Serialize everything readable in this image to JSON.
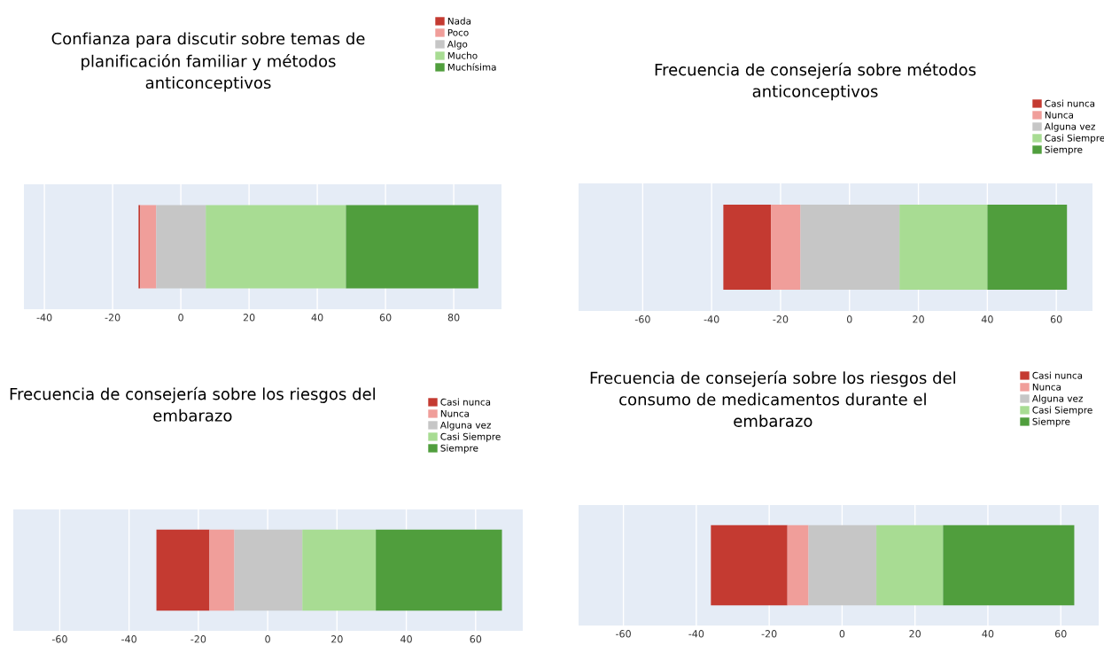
{
  "chart_data": [
    {
      "type": "bar",
      "orientation": "horizontal",
      "title": "Confianza para discutir sobre temas de\nplanificación familiar y métodos\nanticonceptivos",
      "categories": [
        null
      ],
      "xlim": [
        -46,
        94
      ],
      "xticks": [
        -40,
        -20,
        0,
        20,
        40,
        60,
        80
      ],
      "grid": "x",
      "legend": "top right",
      "tick_labels": "x",
      "series": [
        {
          "name": "Nada",
          "color": "#c43a31",
          "base": [
            -12.4
          ],
          "values": [
            0.5
          ]
        },
        {
          "name": "Poco",
          "color": "#f09e9a",
          "base": [
            -11.9
          ],
          "values": [
            4.7
          ]
        },
        {
          "name": "Algo",
          "color": "#c6c6c6",
          "base": [
            -7.2
          ],
          "values": [
            14.5
          ]
        },
        {
          "name": "Mucho",
          "color": "#a8dc93",
          "base": [
            7.3
          ],
          "values": [
            41.1
          ]
        },
        {
          "name": "Muchísima",
          "color": "#509e3d",
          "base": [
            48.4
          ],
          "values": [
            38.8
          ]
        }
      ]
    },
    {
      "type": "bar",
      "orientation": "horizontal",
      "title": "Frecuencia de consejería sobre métodos\nanticonceptivos",
      "categories": [
        null
      ],
      "xlim": [
        -78.6,
        70.5
      ],
      "xticks": [
        -60,
        -40,
        -20,
        0,
        20,
        40,
        60
      ],
      "grid": "x",
      "legend": "top right",
      "tick_labels": "x",
      "series": [
        {
          "name": "Casi nunca",
          "color": "#c43a31",
          "base": [
            -36.6
          ],
          "values": [
            13.8
          ]
        },
        {
          "name": "Nunca",
          "color": "#f09e9a",
          "base": [
            -22.8
          ],
          "values": [
            8.6
          ]
        },
        {
          "name": "Alguna vez",
          "color": "#c6c6c6",
          "base": [
            -14.2
          ],
          "values": [
            28.7
          ]
        },
        {
          "name": "Casi Siempre",
          "color": "#a8dc93",
          "base": [
            14.5
          ],
          "values": [
            25.5
          ]
        },
        {
          "name": "Siempre",
          "color": "#509e3d",
          "base": [
            40.0
          ],
          "values": [
            23.1
          ]
        }
      ]
    },
    {
      "type": "bar",
      "orientation": "horizontal",
      "title": "Frecuencia de consejería sobre los riesgos del\nembarazo",
      "categories": [
        null
      ],
      "xlim": [
        -73.4,
        73.6
      ],
      "xticks": [
        -60,
        -40,
        -20,
        0,
        20,
        40,
        60
      ],
      "grid": "x",
      "legend": "top right",
      "tick_labels": "x",
      "series": [
        {
          "name": "Casi nunca",
          "color": "#c43a31",
          "base": [
            -32.1
          ],
          "values": [
            15.3
          ]
        },
        {
          "name": "Nunca",
          "color": "#f09e9a",
          "base": [
            -16.8
          ],
          "values": [
            7.2
          ]
        },
        {
          "name": "Alguna vez",
          "color": "#c6c6c6",
          "base": [
            -9.6
          ],
          "values": [
            19.6
          ]
        },
        {
          "name": "Casi Siempre",
          "color": "#a8dc93",
          "base": [
            10.0
          ],
          "values": [
            21.2
          ]
        },
        {
          "name": "Siempre",
          "color": "#509e3d",
          "base": [
            31.2
          ],
          "values": [
            36.4
          ]
        }
      ]
    },
    {
      "type": "bar",
      "orientation": "horizontal",
      "title": "Frecuencia de consejería sobre los riesgos del\nconsumo de medicamentos durante el\nembarazo",
      "categories": [
        null
      ],
      "xlim": [
        -72.3,
        70.4
      ],
      "xticks": [
        -60,
        -40,
        -20,
        0,
        20,
        40,
        60
      ],
      "grid": "x",
      "legend": "top right",
      "tick_labels": "x",
      "series": [
        {
          "name": "Casi nunca",
          "color": "#c43a31",
          "base": [
            -36.0
          ],
          "values": [
            21.0
          ]
        },
        {
          "name": "Nunca",
          "color": "#f09e9a",
          "base": [
            -15.0
          ],
          "values": [
            5.8
          ]
        },
        {
          "name": "Alguna vez",
          "color": "#c6c6c6",
          "base": [
            -9.2
          ],
          "values": [
            18.6
          ]
        },
        {
          "name": "Casi Siempre",
          "color": "#a8dc93",
          "base": [
            9.4
          ],
          "values": [
            18.3
          ]
        },
        {
          "name": "Siempre",
          "color": "#509e3d",
          "base": [
            27.7
          ],
          "values": [
            36.0
          ]
        }
      ]
    }
  ]
}
